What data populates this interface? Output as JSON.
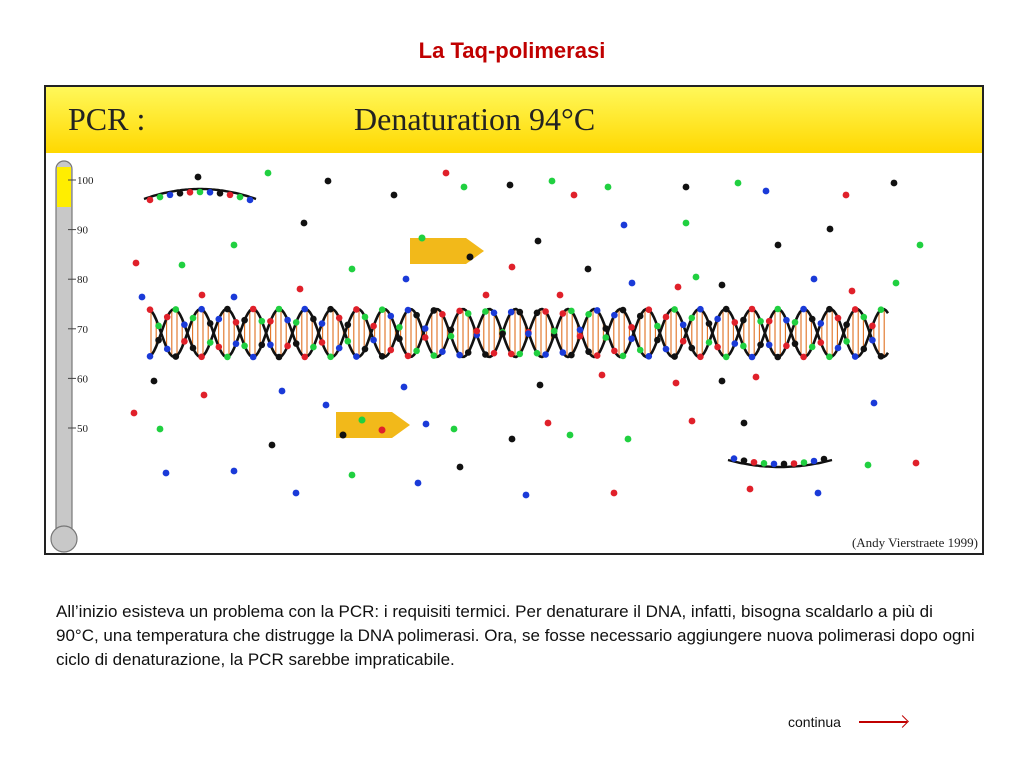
{
  "slide": {
    "title": "La Taq-polimerasi"
  },
  "figure": {
    "banner_left": "PCR :",
    "banner_right": "Denaturation 94°C",
    "credit": "(Andy Vierstraete 1999)",
    "thermometer": {
      "ticks": [
        "100",
        "90",
        "80",
        "70",
        "60",
        "50"
      ],
      "level_celsius": 94
    },
    "colors": {
      "red": "#e0202a",
      "green": "#20d040",
      "blue": "#1a3ad8",
      "black": "#111111",
      "enzyme": "#f2b91a",
      "rung": "#e07020",
      "banner": "#ffd800"
    }
  },
  "body_text": "All’inizio esisteva un problema con la PCR: i requisiti termici. Per denaturare il DNA, infatti, bisogna scaldarlo  a più di 90°C, una temperatura che distrugge la DNA polimerasi. Ora, se fosse necessario aggiungere nuova polimerasi dopo ogni ciclo di denaturazione, la PCR sarebbe impraticabile.",
  "continue_label": "continua"
}
